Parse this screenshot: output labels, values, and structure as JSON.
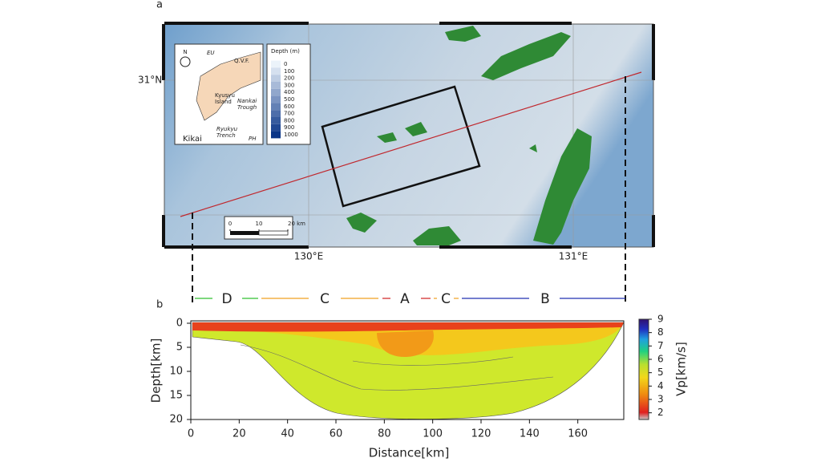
{
  "panel_a": {
    "label": "a",
    "lat_label": "31°N",
    "lon_labels": [
      "130°E",
      "131°E"
    ],
    "inset": {
      "north": "N",
      "plate_eu": "EU",
      "plate_ph": "PH",
      "fault": "Q.V.F.",
      "island": "Kyusyu Island",
      "trough": "Nankai Trough",
      "trench": "Ryukyu Trench",
      "site": "Kikai"
    },
    "depth_legend": {
      "title": "Depth (m)",
      "values": [
        0,
        100,
        200,
        300,
        400,
        500,
        600,
        700,
        800,
        900,
        1000
      ]
    },
    "scale_bar": {
      "ticks": [
        0,
        10,
        {
          "value": 20,
          "label": "20 km"
        }
      ]
    }
  },
  "panel_b": {
    "label": "b",
    "segments": [
      "D",
      "C",
      "A",
      "C",
      "B"
    ],
    "xlabel": "Distance[km]",
    "ylabel": "Depth[km]",
    "xlim": [
      0,
      179
    ],
    "xticks": [
      0,
      20,
      40,
      60,
      80,
      100,
      120,
      140,
      160
    ],
    "ylim": [
      0,
      20
    ],
    "yticks": [
      0,
      5,
      10,
      15,
      20
    ],
    "colorbar": {
      "label": "Vp[km/s]",
      "lim": [
        1.5,
        9
      ],
      "ticks": [
        2,
        3,
        4,
        5,
        6,
        7,
        8,
        9
      ]
    }
  }
}
